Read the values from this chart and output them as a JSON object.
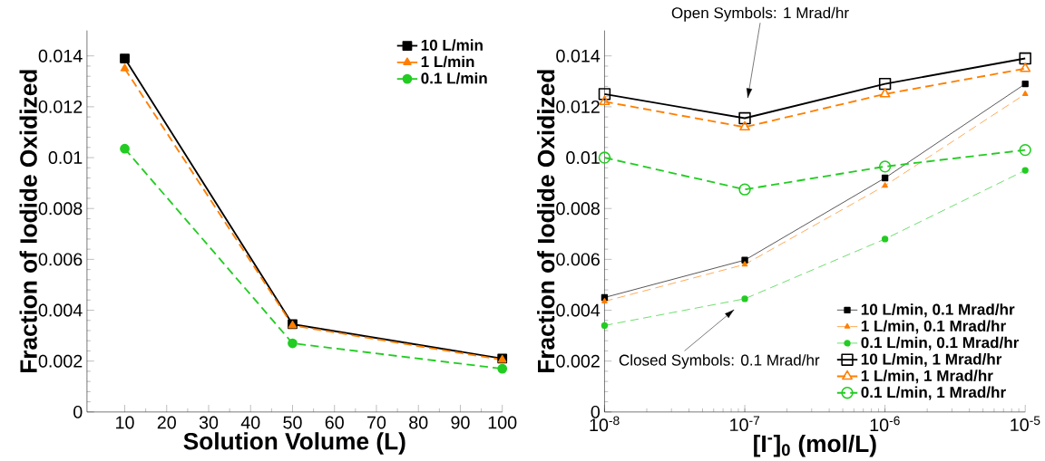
{
  "chart_data": [
    {
      "type": "line",
      "xlabel": "Solution Volume (L)",
      "ylabel": "Fraction of Iodide Oxidized",
      "x": [
        10,
        50,
        100
      ],
      "xlim": [
        1,
        100
      ],
      "xticks": [
        10,
        20,
        30,
        40,
        50,
        60,
        70,
        80,
        90,
        100
      ],
      "ylim": [
        0,
        0.015
      ],
      "yticks": [
        0,
        0.002,
        0.004,
        0.006,
        0.008,
        0.01,
        0.012,
        0.014
      ],
      "grid": false,
      "legend": "top right",
      "series": [
        {
          "name": "10 L/min",
          "color": "#000000",
          "marker": "square",
          "line_style": "solid",
          "values": [
            0.0139,
            0.00345,
            0.0021
          ]
        },
        {
          "name": "1 L/min",
          "color": "#ff7f00",
          "marker": "triangle",
          "line_style": "dashed",
          "values": [
            0.0135,
            0.0034,
            0.00205
          ]
        },
        {
          "name": "0.1 L/min",
          "color": "#22cc22",
          "marker": "circle",
          "line_style": "dashed",
          "values": [
            0.01035,
            0.0027,
            0.0017
          ]
        }
      ]
    },
    {
      "type": "line",
      "xlabel": "[I$^{-}$]$_{0}$ (mol/L)",
      "ylabel": "Fraction of Iodide Oxidized",
      "log": "x",
      "x": [
        1e-08,
        1e-07,
        1e-06,
        1e-05
      ],
      "xlim": [
        1e-08,
        1e-05
      ],
      "xticks": [
        {
          "value": 1e-08,
          "label": "10$^{-8}$"
        },
        {
          "value": 1e-07,
          "label": "10$^{-7}$"
        },
        {
          "value": 1e-06,
          "label": "10$^{-6}$"
        },
        {
          "value": 1e-05,
          "label": "10$^{-5}$"
        }
      ],
      "ylim": [
        0,
        0.015
      ],
      "yticks": [
        0,
        0.002,
        0.004,
        0.006,
        0.008,
        0.01,
        0.012,
        0.014
      ],
      "grid": false,
      "legend": "bottom right",
      "annotations": [
        "Open Symbols: 1 Mrad/hr",
        "Closed Symbols: 0.1 Mrad/hr"
      ],
      "series": [
        {
          "name": "10 L/min, 0.1 Mrad/hr",
          "color": "#000000",
          "marker": "square",
          "line_style": "solid",
          "values": [
            0.0045,
            0.00597,
            0.0092,
            0.0129
          ]
        },
        {
          "name": "1 L/min, 0.1 Mrad/hr",
          "color": "#ff7f00",
          "marker": "triangle",
          "line_style": "dashed",
          "values": [
            0.00435,
            0.0058,
            0.0089,
            0.0125
          ]
        },
        {
          "name": "0.1 L/min, 0.1 Mrad/hr",
          "color": "#22cc22",
          "marker": "circle",
          "line_style": "dashed",
          "values": [
            0.0034,
            0.00445,
            0.0068,
            0.0095
          ]
        },
        {
          "name": "10 L/min, 1 Mrad/hr",
          "color": "#000000",
          "marker": "square",
          "line_style": "solid",
          "values": [
            0.0125,
            0.01155,
            0.0129,
            0.0139
          ]
        },
        {
          "name": "1 L/min, 1 Mrad/hr",
          "color": "#ff7f00",
          "marker": "triangle",
          "line_style": "dashed",
          "values": [
            0.0122,
            0.0112,
            0.0125,
            0.0135
          ]
        },
        {
          "name": "0.1 L/min, 1 Mrad/hr",
          "color": "#22cc22",
          "marker": "circle",
          "line_style": "dashed",
          "values": [
            0.01,
            0.00875,
            0.00965,
            0.0103
          ]
        }
      ]
    }
  ]
}
